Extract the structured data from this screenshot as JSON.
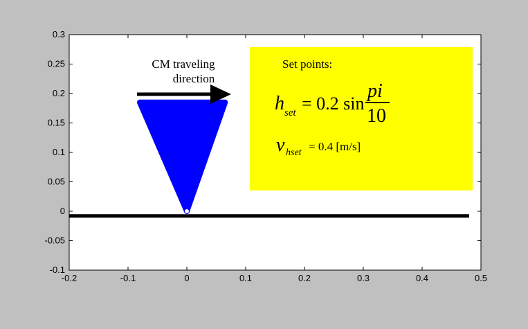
{
  "chart_data": {
    "type": "scatter",
    "xlim": [
      -0.2,
      0.5
    ],
    "ylim": [
      -0.1,
      0.3
    ],
    "x_ticks": [
      "-0.2",
      "-0.1",
      "0",
      "0.1",
      "0.2",
      "0.3",
      "0.4",
      "0.5"
    ],
    "y_ticks": [
      "-0.1",
      "-0.05",
      "0",
      "0.05",
      "0.1",
      "0.15",
      "0.2",
      "0.25",
      "0.3"
    ],
    "grid": false,
    "colors": {
      "figure_bg": "#c0c0c0",
      "axes_bg": "#ffffff",
      "shape": "#0000ff",
      "annotation_box": "#ffff00",
      "ground": "#000000"
    },
    "ground_line": {
      "x": [
        -0.2,
        0.48
      ],
      "y": -0.008
    },
    "triangle": {
      "vertices": [
        [
          -0.08,
          0.185
        ],
        [
          0.065,
          0.185
        ],
        [
          0.0,
          0.0
        ]
      ],
      "color": "#0000ff"
    },
    "marker": {
      "x": 0.0,
      "y": 0.0,
      "shape": "circle"
    },
    "annotations": {
      "direction_label_line1": "CM traveling",
      "direction_label_line2": "direction",
      "set_points_title": "Set points:",
      "h_symbol": "h",
      "h_subscript": "set",
      "h_equals": "= 0.2 sin",
      "fraction_numerator": "pi",
      "fraction_denominator": "10",
      "v_symbol": "v",
      "v_subscript": "hset",
      "v_value": "= 0.4 [m/s]"
    }
  }
}
